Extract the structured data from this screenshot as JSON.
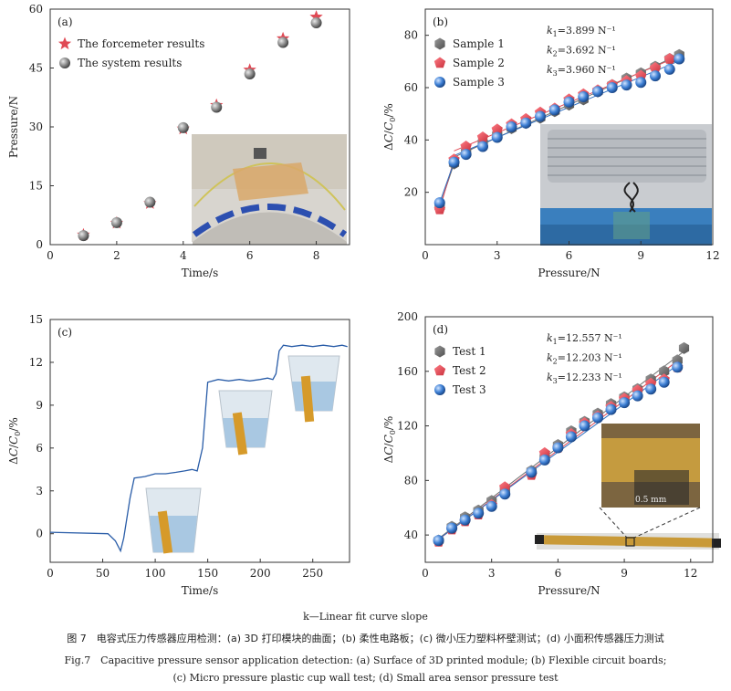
{
  "figure": {
    "footnote": "k—Linear fit curve slope",
    "caption_cn": "图 7　电容式压力传感器应用检测：(a) 3D 打印模块的曲面；(b) 柔性电路板；(c) 微小压力塑料杯壁测试；(d) 小面积传感器压力测试",
    "caption_en_1": "Fig.7　Capacitive pressure sensor application detection: (a) Surface of 3D printed module; (b) Flexible circuit boards;",
    "caption_en_2": "(c) Micro pressure plastic cup wall test; (d) Small area sensor pressure test"
  },
  "colors": {
    "red": "#e04a55",
    "gray": "#6e6e6e",
    "blue": "#2f6fc0",
    "line_c": "#2a5da8"
  },
  "chart_data": [
    {
      "panel": "(a)",
      "type": "scatter",
      "xlabel": "Time/s",
      "ylabel": "Pressure/N",
      "xlim": [
        0,
        9
      ],
      "ylim": [
        0,
        60
      ],
      "xticks": [
        "0",
        "2",
        "4",
        "6",
        "8"
      ],
      "yticks": [
        "0",
        "15",
        "30",
        "45",
        "60"
      ],
      "legend": "top-left",
      "series": [
        {
          "name": "The forcemeter results",
          "marker": "star",
          "color": "#e04a55",
          "x": [
            1,
            2,
            3,
            4,
            5,
            6,
            7,
            8
          ],
          "y": [
            2.5,
            5.5,
            10.5,
            29.5,
            35.5,
            44.5,
            52.5,
            58.0
          ]
        },
        {
          "name": "The system results",
          "marker": "sphere",
          "color": "#6e6e6e",
          "x": [
            1,
            2,
            3,
            4,
            5,
            6,
            7,
            8
          ],
          "y": [
            2.3,
            5.6,
            10.8,
            29.8,
            35.0,
            43.5,
            51.5,
            56.5
          ]
        }
      ]
    },
    {
      "panel": "(b)",
      "type": "scatter",
      "xlabel": "Pressure/N",
      "ylabel": "ΔC/C0/%",
      "xlim": [
        0,
        12
      ],
      "ylim": [
        0,
        90
      ],
      "xticks": [
        "0",
        "3",
        "6",
        "9",
        "12"
      ],
      "yticks": [
        "20",
        "40",
        "60",
        "80"
      ],
      "legend": "top-left",
      "annotations": [
        "k1=3.899 N⁻¹",
        "k2=3.692 N⁻¹",
        "k3=3.960 N⁻¹"
      ],
      "series": [
        {
          "name": "Sample 1",
          "marker": "hexagon",
          "color": "#6e6e6e",
          "x": [
            0.6,
            1.2,
            1.7,
            2.4,
            3.0,
            3.6,
            4.2,
            4.8,
            5.4,
            6.0,
            6.6,
            7.2,
            7.8,
            8.4,
            9.0,
            9.6,
            10.2,
            10.6
          ],
          "y": [
            14.5,
            31.0,
            35.5,
            39.0,
            42.0,
            44.5,
            46.5,
            48.5,
            51.0,
            53.5,
            55.5,
            58.5,
            61.0,
            63.5,
            65.5,
            68.0,
            71.0,
            72.5
          ]
        },
        {
          "name": "Sample 2",
          "marker": "pentagon",
          "color": "#e04a55",
          "x": [
            0.6,
            1.2,
            1.7,
            2.4,
            3.0,
            3.6,
            4.2,
            4.8,
            5.4,
            6.0,
            6.6,
            7.2,
            7.8,
            8.4,
            9.0,
            9.6,
            10.2
          ],
          "y": [
            13.5,
            32.5,
            37.5,
            41.0,
            44.0,
            46.0,
            48.0,
            50.5,
            52.0,
            55.5,
            57.5,
            59.0,
            61.0,
            62.5,
            64.5,
            67.5,
            71.0
          ]
        },
        {
          "name": "Sample 3",
          "marker": "sphere",
          "color": "#2f6fc0",
          "x": [
            0.6,
            1.2,
            1.7,
            2.4,
            3.0,
            3.6,
            4.2,
            4.8,
            5.4,
            6.0,
            6.6,
            7.2,
            7.8,
            8.4,
            9.0,
            9.6,
            10.2,
            10.6
          ],
          "y": [
            16.0,
            31.5,
            34.5,
            37.5,
            41.0,
            45.0,
            46.5,
            49.0,
            51.5,
            54.5,
            56.5,
            58.5,
            60.0,
            61.0,
            62.0,
            64.5,
            67.0,
            71.0
          ]
        }
      ]
    },
    {
      "panel": "(c)",
      "type": "line",
      "xlabel": "Time/s",
      "ylabel": "ΔC/C0/%",
      "xlim": [
        0,
        285
      ],
      "ylim": [
        -2,
        15
      ],
      "xticks": [
        "0",
        "50",
        "100",
        "150",
        "200",
        "250"
      ],
      "yticks": [
        "0",
        "3",
        "6",
        "9",
        "12",
        "15"
      ],
      "series": [
        {
          "name": "",
          "color": "#2a5da8",
          "x": [
            0,
            55,
            62,
            67,
            70,
            76,
            80,
            90,
            100,
            110,
            120,
            128,
            135,
            140,
            145,
            150,
            160,
            170,
            180,
            190,
            200,
            207,
            212,
            215,
            218,
            222,
            230,
            240,
            250,
            260,
            270,
            278,
            283
          ],
          "y": [
            0.1,
            0.0,
            -0.5,
            -1.2,
            -0.3,
            2.5,
            3.9,
            4.0,
            4.2,
            4.2,
            4.3,
            4.4,
            4.5,
            4.4,
            6.0,
            10.6,
            10.8,
            10.7,
            10.8,
            10.7,
            10.8,
            10.9,
            10.8,
            11.2,
            12.8,
            13.2,
            13.1,
            13.2,
            13.1,
            13.2,
            13.1,
            13.2,
            13.1
          ]
        }
      ]
    },
    {
      "panel": "(d)",
      "type": "scatter",
      "xlabel": "Pressure/N",
      "ylabel": "ΔC/C0/%",
      "xlim": [
        0,
        13
      ],
      "ylim": [
        20,
        200
      ],
      "xticks": [
        "0",
        "3",
        "6",
        "9",
        "12"
      ],
      "yticks": [
        "40",
        "80",
        "120",
        "160",
        "200"
      ],
      "legend": "top-left",
      "annotations": [
        "k1=12.557 N⁻¹",
        "k2=12.203 N⁻¹",
        "k3=12.233 N⁻¹"
      ],
      "series": [
        {
          "name": "Test 1",
          "marker": "hexagon",
          "color": "#6e6e6e",
          "x": [
            0.6,
            1.2,
            1.8,
            2.4,
            3.0,
            3.6,
            4.8,
            5.4,
            6.0,
            6.6,
            7.2,
            7.8,
            8.4,
            9.0,
            9.6,
            10.2,
            10.8,
            11.4,
            11.7
          ],
          "y": [
            36,
            46,
            53,
            58,
            65,
            73,
            87,
            97,
            106,
            116,
            123,
            129,
            136,
            141,
            147,
            154,
            160,
            168,
            177
          ]
        },
        {
          "name": "Test 2",
          "marker": "pentagon",
          "color": "#e04a55",
          "x": [
            0.6,
            1.2,
            1.8,
            2.4,
            3.0,
            3.6,
            4.8,
            5.4,
            6.0,
            6.6,
            7.2,
            7.8,
            8.4,
            9.0,
            9.6,
            10.2,
            10.8,
            11.4
          ],
          "y": [
            35,
            44,
            50,
            55,
            62,
            75,
            84,
            100,
            104,
            114,
            122,
            127,
            134,
            140,
            146,
            151,
            154,
            163
          ]
        },
        {
          "name": "Test 3",
          "marker": "sphere",
          "color": "#2f6fc0",
          "x": [
            0.6,
            1.2,
            1.8,
            2.4,
            3.0,
            3.6,
            4.8,
            5.4,
            6.0,
            6.6,
            7.2,
            7.8,
            8.4,
            9.0,
            9.6,
            10.2,
            10.8,
            11.4
          ],
          "y": [
            36,
            45,
            51,
            56,
            61,
            70,
            86,
            95,
            104,
            112,
            120,
            126,
            132,
            137,
            142,
            147,
            152,
            163
          ]
        }
      ]
    }
  ]
}
